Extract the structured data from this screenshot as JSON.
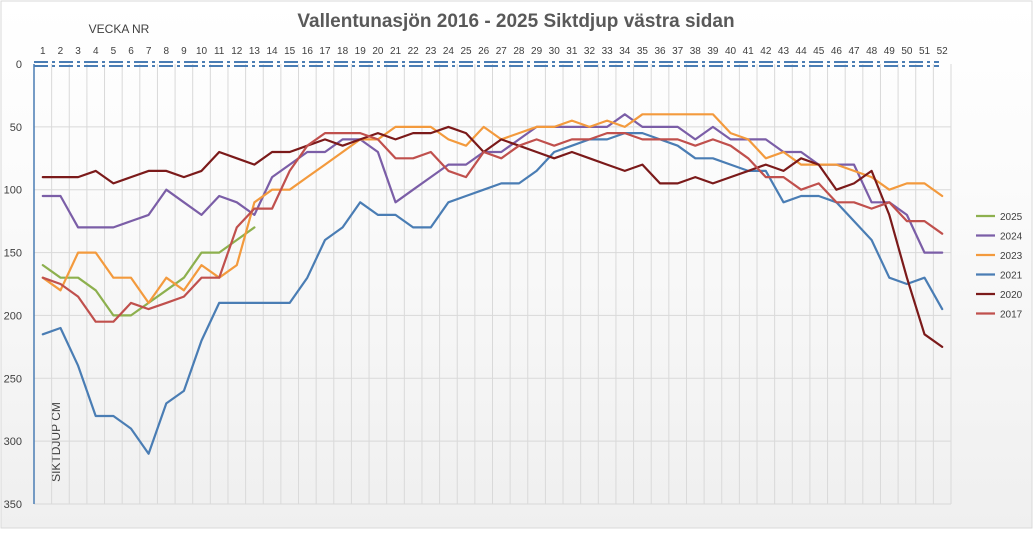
{
  "chart_data": {
    "type": "line",
    "title": "Vallentunasjön 2016 - 2025 Siktdjup västra sidan",
    "xlabel": "VECKA NR",
    "ylabel": "SIKTDJUP CM",
    "x_axis_position": "top",
    "y_axis_inverted": true,
    "ylim": [
      0,
      350
    ],
    "yticks": [
      0,
      50,
      100,
      150,
      200,
      250,
      300,
      350
    ],
    "x": [
      1,
      2,
      3,
      4,
      5,
      6,
      7,
      8,
      9,
      10,
      11,
      12,
      13,
      14,
      15,
      16,
      17,
      18,
      19,
      20,
      21,
      22,
      23,
      24,
      25,
      26,
      27,
      28,
      29,
      30,
      31,
      32,
      33,
      34,
      35,
      36,
      37,
      38,
      39,
      40,
      41,
      42,
      43,
      44,
      45,
      46,
      47,
      48,
      49,
      50,
      51,
      52
    ],
    "vertical_gridlines": true,
    "legend_position": "right",
    "series": [
      {
        "name": "2025",
        "color": "#8db04e",
        "values": [
          160,
          170,
          170,
          180,
          200,
          200,
          190,
          180,
          170,
          150,
          150,
          140,
          130,
          null,
          null,
          null,
          null,
          null,
          null,
          null,
          null,
          null,
          null,
          null,
          null,
          null,
          null,
          null,
          null,
          null,
          null,
          null,
          null,
          null,
          null,
          null,
          null,
          null,
          null,
          null,
          null,
          null,
          null,
          null,
          null,
          null,
          null,
          null,
          null,
          null,
          null,
          null
        ]
      },
      {
        "name": "2024",
        "color": "#7b5ea7",
        "values": [
          105,
          105,
          130,
          130,
          130,
          125,
          120,
          100,
          110,
          120,
          105,
          110,
          120,
          90,
          80,
          70,
          70,
          60,
          60,
          70,
          110,
          100,
          90,
          80,
          80,
          70,
          70,
          60,
          50,
          50,
          50,
          50,
          50,
          40,
          50,
          50,
          50,
          60,
          50,
          60,
          60,
          60,
          70,
          70,
          80,
          80,
          80,
          110,
          110,
          120,
          150,
          150
        ]
      },
      {
        "name": "2023",
        "color": "#f39a3d",
        "values": [
          170,
          180,
          150,
          150,
          170,
          170,
          190,
          170,
          180,
          160,
          170,
          160,
          110,
          100,
          100,
          90,
          80,
          70,
          60,
          60,
          50,
          50,
          50,
          60,
          65,
          50,
          60,
          55,
          50,
          50,
          45,
          50,
          45,
          50,
          40,
          40,
          40,
          40,
          40,
          55,
          60,
          75,
          70,
          80,
          80,
          80,
          85,
          90,
          100,
          95,
          95,
          105
        ]
      },
      {
        "name": "2021",
        "color": "#4a7db4",
        "values": [
          215,
          210,
          240,
          280,
          280,
          290,
          310,
          270,
          260,
          220,
          190,
          190,
          190,
          190,
          190,
          170,
          140,
          130,
          110,
          120,
          120,
          130,
          130,
          110,
          105,
          100,
          95,
          95,
          85,
          70,
          65,
          60,
          60,
          55,
          55,
          60,
          65,
          75,
          75,
          80,
          85,
          85,
          110,
          105,
          105,
          110,
          125,
          140,
          170,
          175,
          170,
          195
        ]
      },
      {
        "name": "2020",
        "color": "#7b1a1a",
        "values": [
          90,
          90,
          90,
          85,
          95,
          90,
          85,
          85,
          90,
          85,
          70,
          75,
          80,
          70,
          70,
          65,
          60,
          65,
          60,
          55,
          60,
          55,
          55,
          50,
          55,
          70,
          60,
          65,
          70,
          75,
          70,
          75,
          80,
          85,
          80,
          95,
          95,
          90,
          95,
          90,
          85,
          80,
          85,
          75,
          80,
          100,
          95,
          85,
          120,
          170,
          215,
          225
        ]
      },
      {
        "name": "2017",
        "color": "#c0504d",
        "values": [
          170,
          175,
          185,
          205,
          205,
          190,
          195,
          190,
          185,
          170,
          170,
          130,
          115,
          115,
          85,
          65,
          55,
          55,
          55,
          60,
          75,
          75,
          70,
          85,
          90,
          70,
          75,
          65,
          60,
          65,
          60,
          60,
          55,
          55,
          60,
          60,
          60,
          65,
          60,
          65,
          75,
          90,
          90,
          100,
          95,
          110,
          110,
          115,
          110,
          125,
          125,
          135
        ]
      }
    ]
  }
}
